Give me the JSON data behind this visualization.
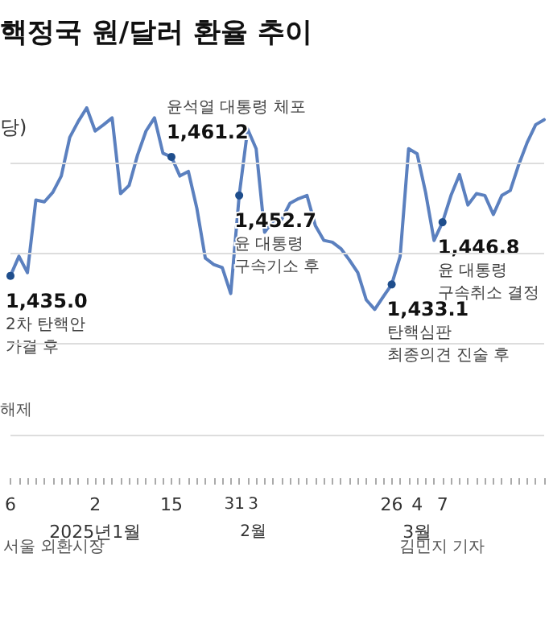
{
  "chart_data": {
    "type": "line",
    "title": "핵정국 원/달러 환율 추이",
    "ylabel": "당)",
    "categories": [
      "6",
      null,
      null,
      null,
      null,
      null,
      null,
      null,
      null,
      null,
      "2\n2025년1월",
      null,
      null,
      null,
      null,
      null,
      null,
      null,
      null,
      "15",
      null,
      null,
      null,
      null,
      null,
      null,
      null,
      "31",
      "3\n2월",
      null,
      null,
      null,
      null,
      null,
      null,
      null,
      null,
      null,
      null,
      null,
      null,
      null,
      null,
      null,
      null,
      "26",
      null,
      null,
      "4\n3월",
      null,
      null,
      "7",
      null,
      null,
      null,
      null,
      null,
      null,
      null,
      null,
      null,
      null,
      null,
      null
    ],
    "series": [
      {
        "color": "#5b80bf",
        "values": [
          1435.0,
          1439.3,
          1435.7,
          1451.7,
          1451.3,
          1453.4,
          1457.0,
          1465.5,
          1469.0,
          1472.0,
          1466.9,
          1468.3,
          1469.8,
          1453.1,
          1454.9,
          1461.6,
          1466.9,
          1469.8,
          1462.0,
          1461.2,
          1457.0,
          1458.0,
          1449.9,
          1438.9,
          1437.5,
          1436.8,
          1431.1,
          1452.7,
          1467.3,
          1463.0,
          1444.6,
          1447.1,
          1447.4,
          1451.0,
          1452.0,
          1452.7,
          1446.0,
          1442.8,
          1442.4,
          1441.0,
          1438.5,
          1435.7,
          1429.7,
          1427.6,
          1430.4,
          1433.1,
          1439.3,
          1463.0,
          1461.9,
          1453.4,
          1442.8,
          1446.8,
          1452.7,
          1457.3,
          1450.6,
          1453.1,
          1452.7,
          1448.5,
          1452.7,
          1453.8,
          1459.5,
          1464.4,
          1468.3,
          1469.4
        ],
        "value_labels": [
          "1,435.0",
          null,
          null,
          null,
          null,
          null,
          null,
          null,
          null,
          null,
          null,
          null,
          null,
          null,
          null,
          null,
          null,
          null,
          null,
          "1,461.2",
          null,
          null,
          null,
          null,
          null,
          null,
          null,
          "1,452.7",
          null,
          null,
          null,
          null,
          null,
          null,
          null,
          null,
          null,
          null,
          null,
          null,
          null,
          null,
          null,
          null,
          null,
          "1,433.1",
          null,
          null,
          null,
          null,
          null,
          "1,446.8",
          null,
          null,
          null,
          null,
          null,
          null,
          null,
          null,
          null,
          null,
          null,
          null
        ]
      }
    ],
    "ref_lines": [
      {
        "axis": "y",
        "value": 1400,
        "color": "#dddddd"
      },
      {
        "axis": "y",
        "value": 1420,
        "color": "#dddddd"
      },
      {
        "axis": "y",
        "value": 1440,
        "color": "#dddddd"
      },
      {
        "axis": "y",
        "value": 1460,
        "color": "#dddddd"
      }
    ],
    "tick_labels": "x",
    "annotations": [
      {
        "text": "2차 탄핵안\n가결 후",
        "x": "6",
        "y": 1435.0
      },
      {
        "text": "윤석열 대통령 체포",
        "x": "15",
        "y": 1461.2
      },
      {
        "text": "윤 대통령\n구속기소 후",
        "x": "31",
        "y": 1452.7
      },
      {
        "text": "탄핵심판\n최종의견 진술 후",
        "x": "26",
        "y": 1433.1
      },
      {
        "text": "윤 대통령\n구속취소 결정",
        "x": "7",
        "y": 1446.8
      },
      "해제",
      "서울 외환시장",
      "김민지 기자"
    ]
  }
}
